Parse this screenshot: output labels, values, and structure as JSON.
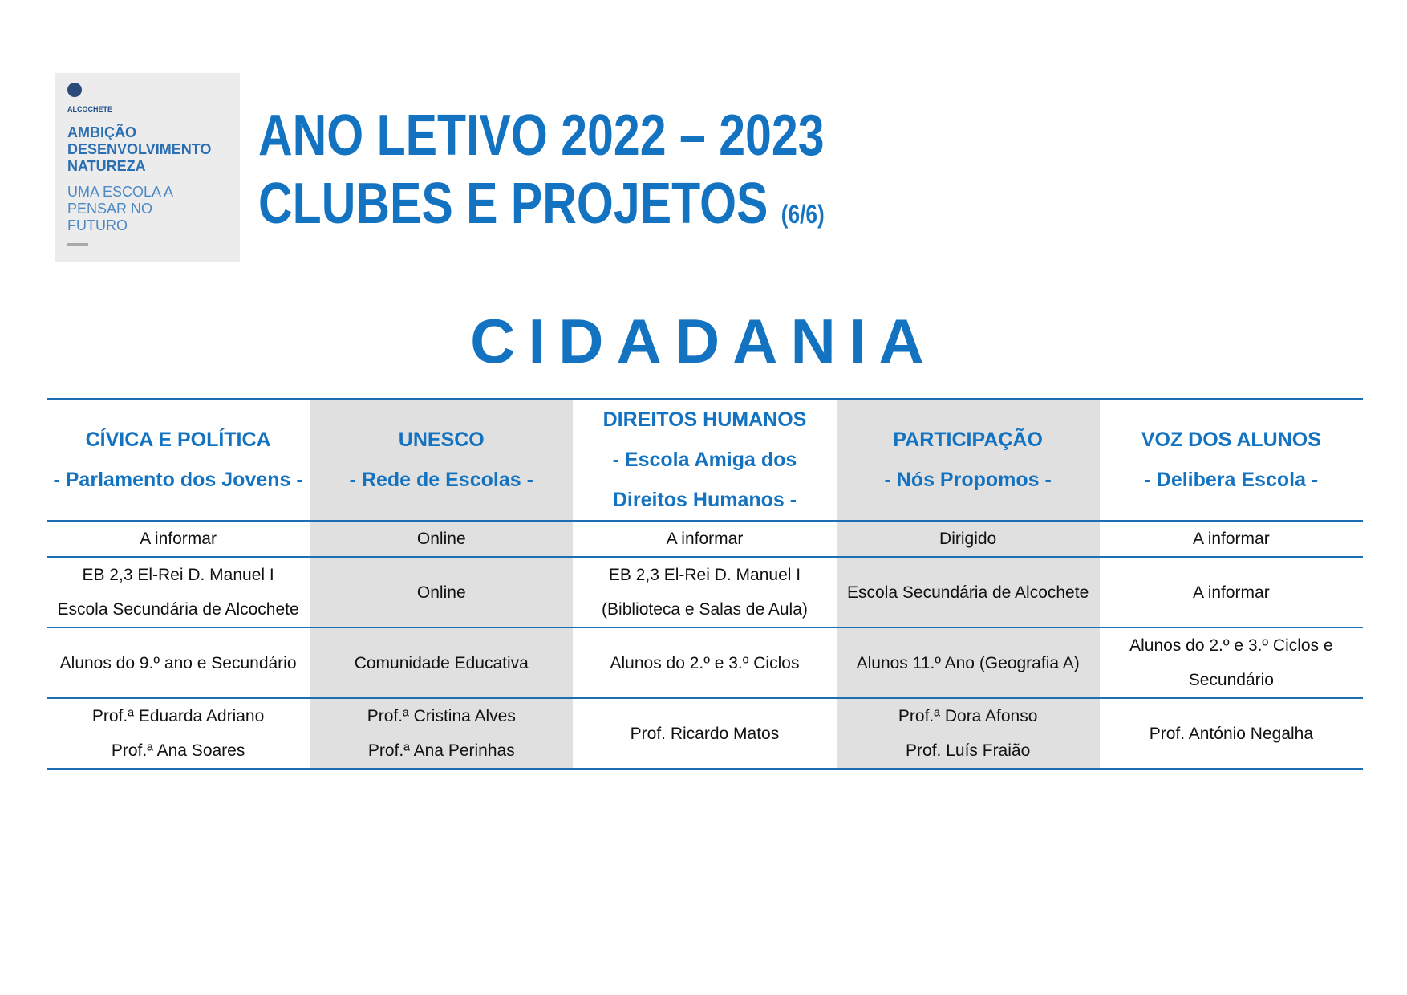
{
  "logo": {
    "brand": "ALCOCHETE",
    "lines_bold": [
      "AMBIÇÃO",
      "DESENVOLVIMENTO",
      "NATUREZA"
    ],
    "lines_light": [
      "UMA ESCOLA A",
      "PENSAR NO",
      "FUTURO"
    ]
  },
  "header": {
    "title_line1": "ANO LETIVO 2022 – 2023",
    "title_line2": "CLUBES E PROJETOS",
    "page": "(6/6)"
  },
  "section_title": "CIDADANIA",
  "table": {
    "columns": [
      {
        "title": "CÍVICA E POLÍTICA",
        "subtitle": "- Parlamento dos Jovens -"
      },
      {
        "title": "UNESCO",
        "subtitle": "- Rede de Escolas -"
      },
      {
        "title": "DIREITOS HUMANOS",
        "subtitle": "- Escola Amiga dos Direitos Humanos -"
      },
      {
        "title": "PARTICIPAÇÃO",
        "subtitle": "- Nós Propomos -"
      },
      {
        "title": "VOZ DOS ALUNOS",
        "subtitle": "- Delibera Escola -"
      }
    ],
    "rows": [
      [
        [
          "A informar"
        ],
        [
          "Online"
        ],
        [
          "A informar"
        ],
        [
          "Dirigido"
        ],
        [
          "A informar"
        ]
      ],
      [
        [
          "EB 2,3 El-Rei D. Manuel I",
          "Escola Secundária de Alcochete"
        ],
        [
          "Online"
        ],
        [
          "EB 2,3 El-Rei D. Manuel I",
          "(Biblioteca e Salas de Aula)"
        ],
        [
          "Escola Secundária de Alcochete"
        ],
        [
          "A informar"
        ]
      ],
      [
        [
          "Alunos do 9.º ano e Secundário"
        ],
        [
          "Comunidade Educativa"
        ],
        [
          "Alunos do 2.º e 3.º Ciclos"
        ],
        [
          "Alunos 11.º Ano (Geografia A)"
        ],
        [
          "Alunos do 2.º e 3.º Ciclos e Secundário"
        ]
      ],
      [
        [
          "Prof.ª Eduarda Adriano",
          "Prof.ª Ana Soares"
        ],
        [
          "Prof.ª Cristina Alves",
          "Prof.ª Ana Perinhas"
        ],
        [
          "Prof. Ricardo Matos"
        ],
        [
          "Prof.ª Dora Afonso",
          "Prof. Luís Fraião"
        ],
        [
          "Prof. António Negalha"
        ]
      ]
    ]
  }
}
